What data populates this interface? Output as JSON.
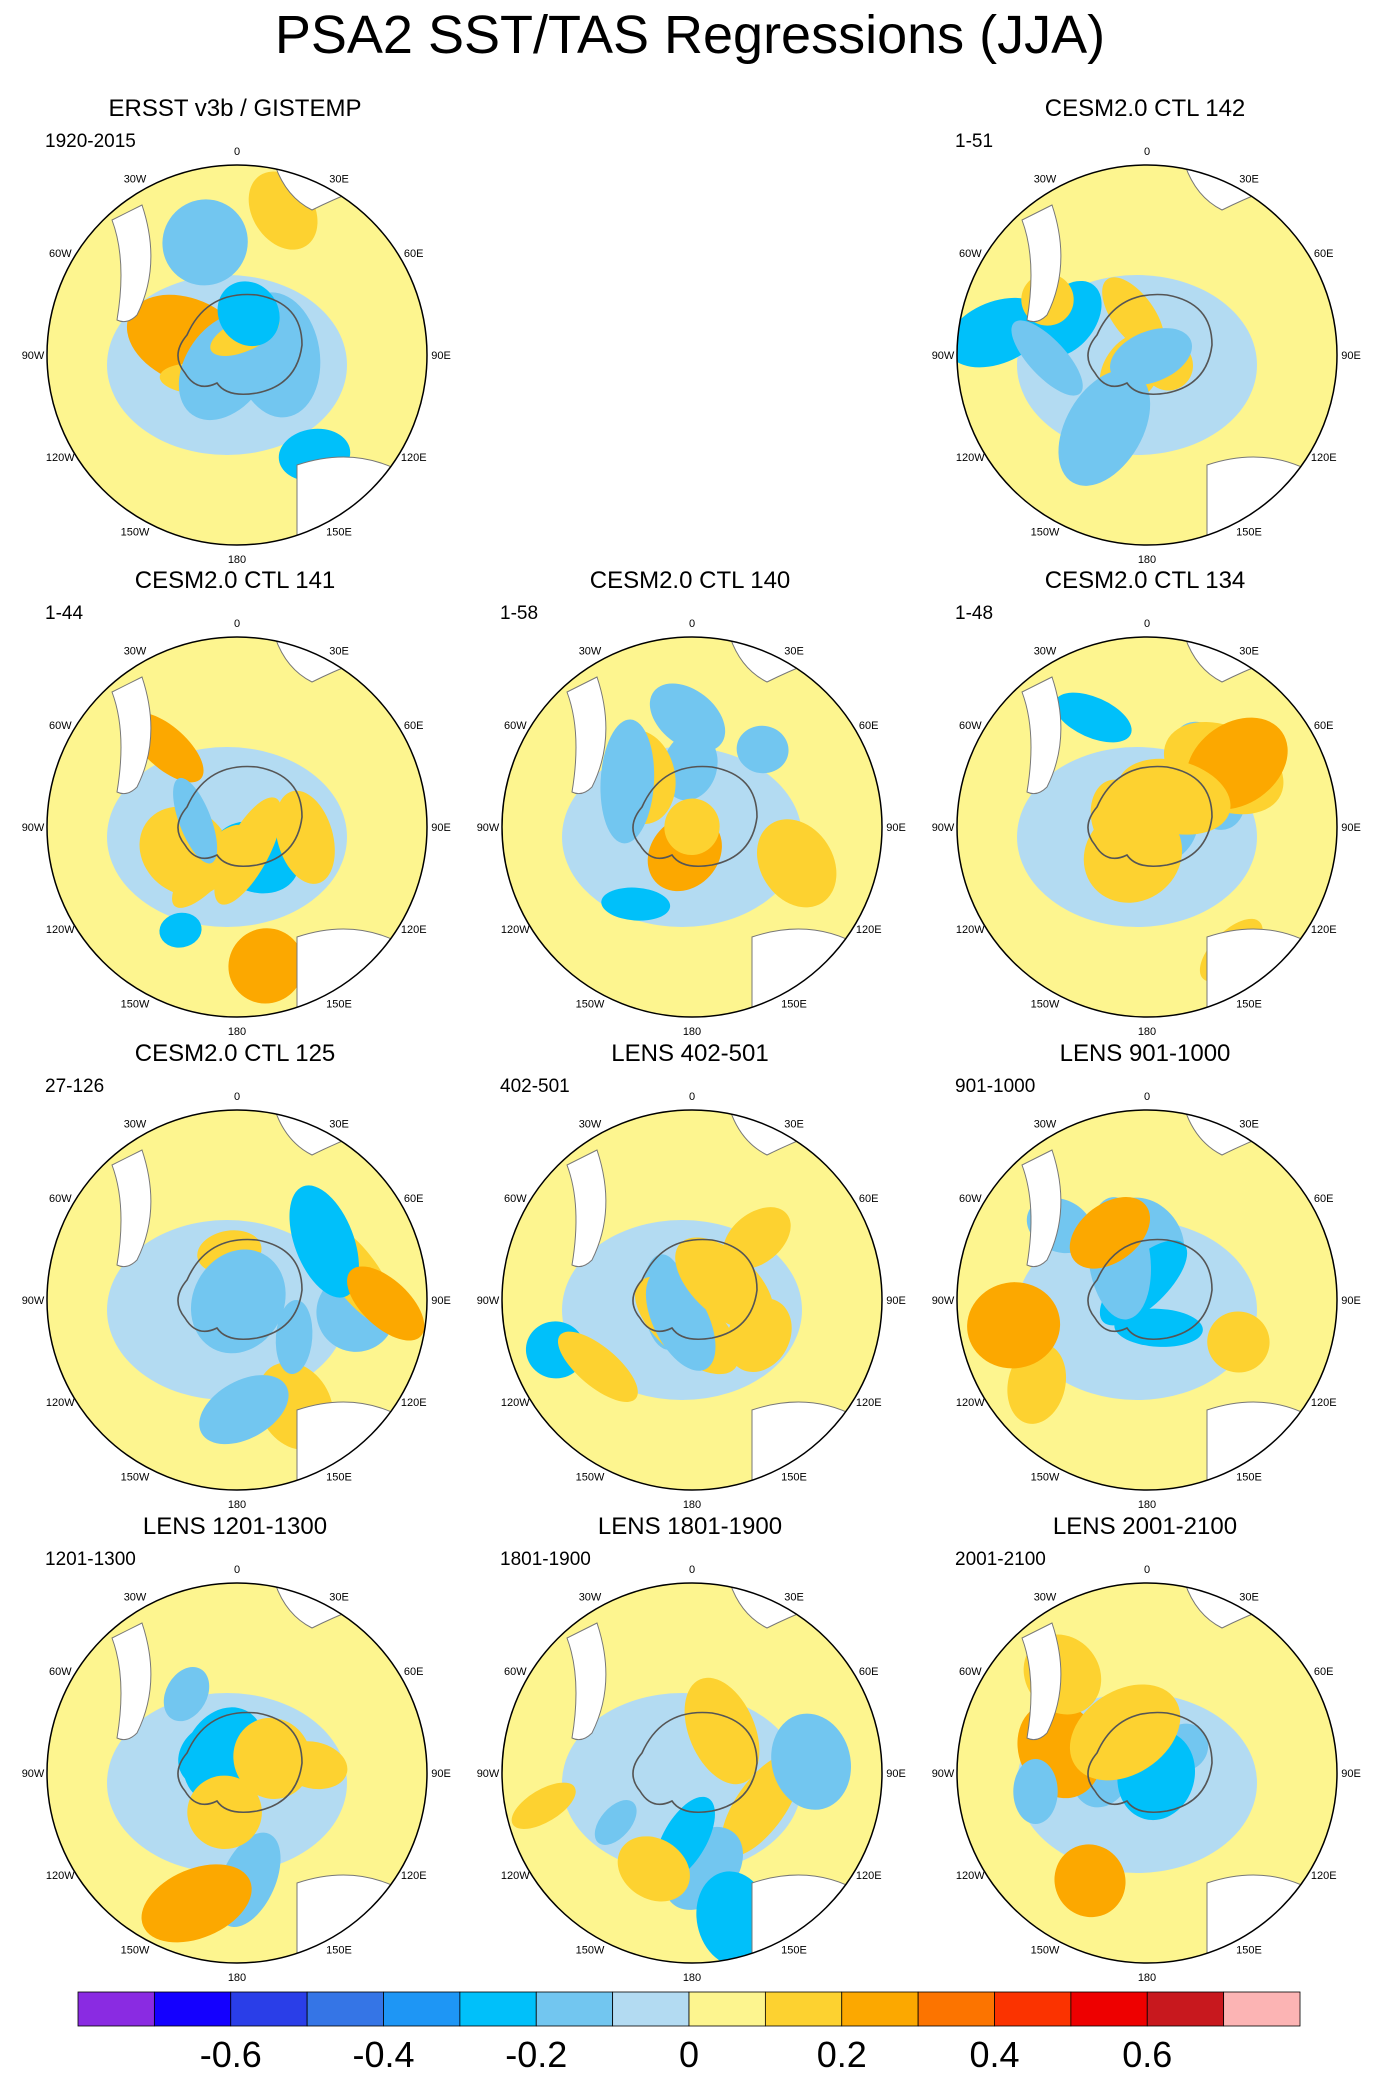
{
  "title": "PSA2 SST/TAS Regressions (JJA)",
  "lon_labels": [
    "0",
    "30E",
    "60E",
    "90E",
    "120E",
    "150E",
    "180",
    "150W",
    "120W",
    "90W",
    "60W",
    "30W"
  ],
  "panels": [
    {
      "title": "ERSST v3b / GISTEMP",
      "period": "1920-2015",
      "seed": 1
    },
    {
      "title": "CESM2.0 CTL 142",
      "period": "1-51",
      "seed": 2
    },
    {
      "title": "CESM2.0 CTL 141",
      "period": "1-44",
      "seed": 3
    },
    {
      "title": "CESM2.0 CTL 140",
      "period": "1-58",
      "seed": 4
    },
    {
      "title": "CESM2.0 CTL 134",
      "period": "1-48",
      "seed": 5
    },
    {
      "title": "CESM2.0 CTL 125",
      "period": "27-126",
      "seed": 6
    },
    {
      "title": "LENS 402-501",
      "period": "402-501",
      "seed": 7
    },
    {
      "title": "LENS 901-1000",
      "period": "901-1000",
      "seed": 8
    },
    {
      "title": "LENS 1201-1300",
      "period": "1201-1300",
      "seed": 9
    },
    {
      "title": "LENS 1801-1900",
      "period": "1801-1900",
      "seed": 10
    },
    {
      "title": "LENS 2001-2100",
      "period": "2001-2100",
      "seed": 11
    }
  ],
  "colorbar": {
    "colors": [
      "#8a2be2",
      "#1400ff",
      "#2a3ee8",
      "#3575e6",
      "#1e96f5",
      "#00c0fa",
      "#72c6f0",
      "#b3dbf2",
      "#fdf58f",
      "#fdd230",
      "#fca800",
      "#fc7400",
      "#fb3300",
      "#ee0000",
      "#c8181e",
      "#fcb4b4"
    ],
    "labels": [
      "-0.6",
      "-0.4",
      "-0.2",
      "0",
      "0.2",
      "0.4",
      "0.6"
    ]
  }
}
